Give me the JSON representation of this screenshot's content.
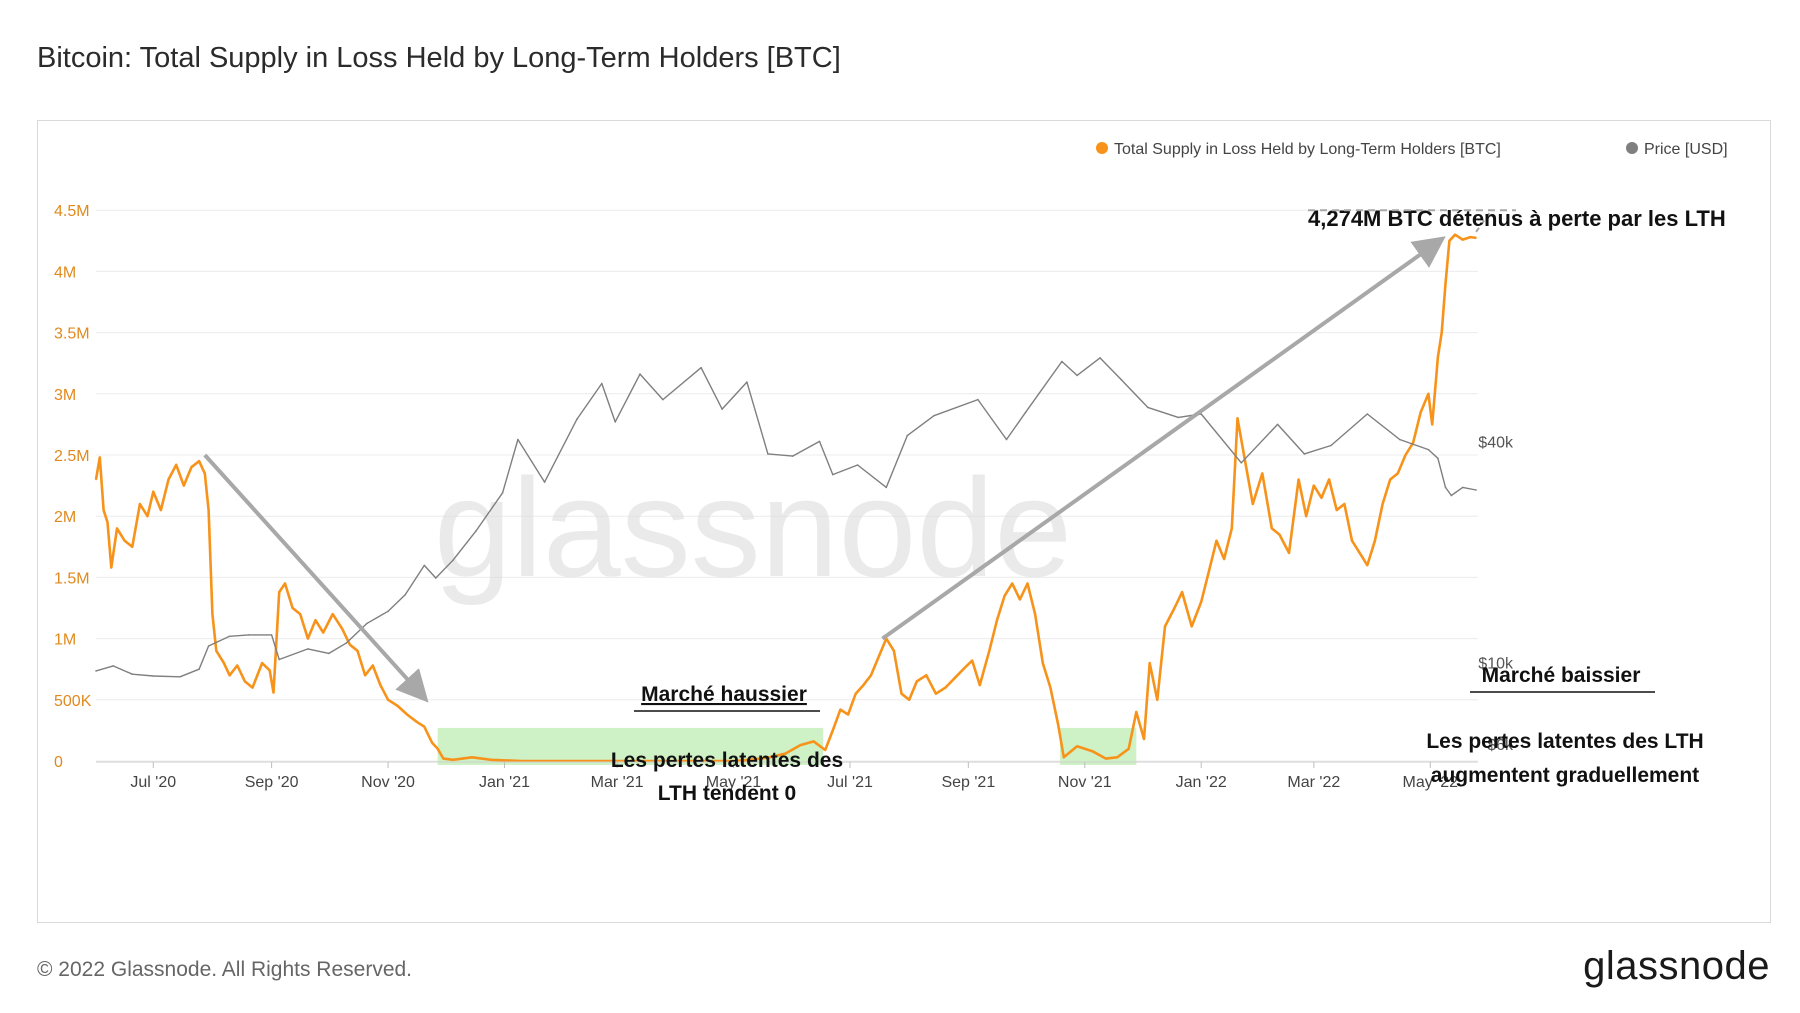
{
  "page": {
    "title": "Bitcoin: Total Supply in Loss Held by Long-Term Holders [BTC]",
    "copyright": "© 2022 Glassnode. All Rights Reserved.",
    "logo": "glassnode",
    "watermark": "glassnode"
  },
  "colors": {
    "supply": "#f7931a",
    "price": "#7f7f7f",
    "green_band": "#c9efc0",
    "arrow": "#a8a8a8",
    "left_axis_text": "#e08a1e",
    "right_axis_text": "#555555"
  },
  "annotations": {
    "top_label": "4,274M BTC détenus à perte par les LTH",
    "bull_title": "Marché haussier",
    "bull_line1": "Les pertes latentes des",
    "bull_line2": "LTH tendent 0",
    "bear_title": "Marché baissier",
    "bear_line1": "Les pertes latentes des LTH",
    "bear_line2": "augmentent graduellement"
  },
  "chart_data": {
    "type": "line",
    "title": "Bitcoin: Total Supply in Loss Held by Long-Term Holders [BTC]",
    "x_start": "2020-06-01",
    "x_end": "2022-05-26",
    "x_ticks": [
      {
        "label": "Jul '20",
        "date": "2020-07-01"
      },
      {
        "label": "Sep '20",
        "date": "2020-09-01"
      },
      {
        "label": "Nov '20",
        "date": "2020-11-01"
      },
      {
        "label": "Jan '21",
        "date": "2021-01-01"
      },
      {
        "label": "Mar '21",
        "date": "2021-03-01"
      },
      {
        "label": "May '21",
        "date": "2021-05-01"
      },
      {
        "label": "Jul '21",
        "date": "2021-07-01"
      },
      {
        "label": "Sep '21",
        "date": "2021-09-01"
      },
      {
        "label": "Nov '21",
        "date": "2021-11-01"
      },
      {
        "label": "Jan '22",
        "date": "2022-01-01"
      },
      {
        "label": "Mar '22",
        "date": "2022-03-01"
      },
      {
        "label": "May '22",
        "date": "2022-05-01"
      }
    ],
    "y_left": {
      "min": 0,
      "max": 5000000,
      "ticks": [
        {
          "value": 0,
          "label": "0"
        },
        {
          "value": 500000,
          "label": "500K"
        },
        {
          "value": 1000000,
          "label": "1M"
        },
        {
          "value": 1500000,
          "label": "1.5M"
        },
        {
          "value": 2000000,
          "label": "2M"
        },
        {
          "value": 2500000,
          "label": "2.5M"
        },
        {
          "value": 3000000,
          "label": "3M"
        },
        {
          "value": 3500000,
          "label": "3.5M"
        },
        {
          "value": 4000000,
          "label": "4M"
        },
        {
          "value": 4500000,
          "label": "4.5M"
        }
      ]
    },
    "y_right": {
      "scale": "log",
      "min": 5400,
      "max": 250000,
      "ticks": [
        {
          "value": 6000,
          "label": "$6k"
        },
        {
          "value": 10000,
          "label": "$10k"
        },
        {
          "value": 40000,
          "label": "$40k"
        }
      ]
    },
    "legend": {
      "position": "top-right"
    },
    "series": [
      {
        "name": "Total Supply in Loss Held by Long-Term Holders [BTC]",
        "axis": "left",
        "color": "#f7931a",
        "points": [
          [
            "2020-06-01",
            2300000
          ],
          [
            "2020-06-03",
            2480000
          ],
          [
            "2020-06-05",
            2050000
          ],
          [
            "2020-06-07",
            1950000
          ],
          [
            "2020-06-09",
            1580000
          ],
          [
            "2020-06-12",
            1900000
          ],
          [
            "2020-06-16",
            1800000
          ],
          [
            "2020-06-20",
            1750000
          ],
          [
            "2020-06-24",
            2100000
          ],
          [
            "2020-06-28",
            2000000
          ],
          [
            "2020-07-01",
            2200000
          ],
          [
            "2020-07-05",
            2050000
          ],
          [
            "2020-07-09",
            2300000
          ],
          [
            "2020-07-13",
            2420000
          ],
          [
            "2020-07-17",
            2250000
          ],
          [
            "2020-07-21",
            2400000
          ],
          [
            "2020-07-25",
            2450000
          ],
          [
            "2020-07-28",
            2350000
          ],
          [
            "2020-07-30",
            2050000
          ],
          [
            "2020-08-01",
            1200000
          ],
          [
            "2020-08-03",
            900000
          ],
          [
            "2020-08-07",
            800000
          ],
          [
            "2020-08-10",
            700000
          ],
          [
            "2020-08-14",
            780000
          ],
          [
            "2020-08-18",
            650000
          ],
          [
            "2020-08-22",
            600000
          ],
          [
            "2020-08-27",
            800000
          ],
          [
            "2020-08-31",
            740000
          ],
          [
            "2020-09-02",
            560000
          ],
          [
            "2020-09-05",
            1380000
          ],
          [
            "2020-09-08",
            1450000
          ],
          [
            "2020-09-12",
            1250000
          ],
          [
            "2020-09-16",
            1200000
          ],
          [
            "2020-09-20",
            1000000
          ],
          [
            "2020-09-24",
            1150000
          ],
          [
            "2020-09-28",
            1050000
          ],
          [
            "2020-10-03",
            1200000
          ],
          [
            "2020-10-08",
            1080000
          ],
          [
            "2020-10-12",
            950000
          ],
          [
            "2020-10-16",
            900000
          ],
          [
            "2020-10-20",
            700000
          ],
          [
            "2020-10-24",
            780000
          ],
          [
            "2020-10-28",
            620000
          ],
          [
            "2020-11-01",
            500000
          ],
          [
            "2020-11-06",
            450000
          ],
          [
            "2020-11-11",
            380000
          ],
          [
            "2020-11-16",
            320000
          ],
          [
            "2020-11-20",
            280000
          ],
          [
            "2020-11-24",
            150000
          ],
          [
            "2020-11-27",
            100000
          ],
          [
            "2020-11-30",
            20000
          ],
          [
            "2020-12-05",
            10000
          ],
          [
            "2020-12-15",
            30000
          ],
          [
            "2020-12-25",
            10000
          ],
          [
            "2021-01-10",
            0
          ],
          [
            "2021-02-10",
            0
          ],
          [
            "2021-03-10",
            0
          ],
          [
            "2021-04-10",
            0
          ],
          [
            "2021-05-01",
            0
          ],
          [
            "2021-05-10",
            10000
          ],
          [
            "2021-05-20",
            30000
          ],
          [
            "2021-05-28",
            60000
          ],
          [
            "2021-06-05",
            130000
          ],
          [
            "2021-06-12",
            160000
          ],
          [
            "2021-06-18",
            90000
          ],
          [
            "2021-06-22",
            250000
          ],
          [
            "2021-06-26",
            420000
          ],
          [
            "2021-06-30",
            380000
          ],
          [
            "2021-07-04",
            550000
          ],
          [
            "2021-07-08",
            620000
          ],
          [
            "2021-07-12",
            700000
          ],
          [
            "2021-07-16",
            850000
          ],
          [
            "2021-07-20",
            1000000
          ],
          [
            "2021-07-24",
            900000
          ],
          [
            "2021-07-28",
            550000
          ],
          [
            "2021-08-01",
            500000
          ],
          [
            "2021-08-05",
            650000
          ],
          [
            "2021-08-10",
            700000
          ],
          [
            "2021-08-15",
            550000
          ],
          [
            "2021-08-20",
            600000
          ],
          [
            "2021-08-25",
            680000
          ],
          [
            "2021-08-30",
            760000
          ],
          [
            "2021-09-03",
            820000
          ],
          [
            "2021-09-07",
            620000
          ],
          [
            "2021-09-12",
            900000
          ],
          [
            "2021-09-16",
            1150000
          ],
          [
            "2021-09-20",
            1350000
          ],
          [
            "2021-09-24",
            1450000
          ],
          [
            "2021-09-28",
            1320000
          ],
          [
            "2021-10-02",
            1450000
          ],
          [
            "2021-10-06",
            1200000
          ],
          [
            "2021-10-10",
            800000
          ],
          [
            "2021-10-14",
            600000
          ],
          [
            "2021-10-18",
            300000
          ],
          [
            "2021-10-21",
            30000
          ],
          [
            "2021-10-28",
            120000
          ],
          [
            "2021-11-05",
            80000
          ],
          [
            "2021-11-12",
            20000
          ],
          [
            "2021-11-18",
            30000
          ],
          [
            "2021-11-24",
            100000
          ],
          [
            "2021-11-28",
            400000
          ],
          [
            "2021-12-02",
            180000
          ],
          [
            "2021-12-05",
            800000
          ],
          [
            "2021-12-09",
            500000
          ],
          [
            "2021-12-13",
            1100000
          ],
          [
            "2021-12-18",
            1250000
          ],
          [
            "2021-12-22",
            1380000
          ],
          [
            "2021-12-27",
            1100000
          ],
          [
            "2022-01-01",
            1300000
          ],
          [
            "2022-01-05",
            1550000
          ],
          [
            "2022-01-09",
            1800000
          ],
          [
            "2022-01-13",
            1650000
          ],
          [
            "2022-01-17",
            1900000
          ],
          [
            "2022-01-20",
            2800000
          ],
          [
            "2022-01-24",
            2450000
          ],
          [
            "2022-01-28",
            2100000
          ],
          [
            "2022-02-02",
            2350000
          ],
          [
            "2022-02-07",
            1900000
          ],
          [
            "2022-02-11",
            1850000
          ],
          [
            "2022-02-16",
            1700000
          ],
          [
            "2022-02-21",
            2300000
          ],
          [
            "2022-02-25",
            2000000
          ],
          [
            "2022-03-01",
            2250000
          ],
          [
            "2022-03-05",
            2150000
          ],
          [
            "2022-03-09",
            2300000
          ],
          [
            "2022-03-13",
            2050000
          ],
          [
            "2022-03-17",
            2100000
          ],
          [
            "2022-03-21",
            1800000
          ],
          [
            "2022-03-25",
            1700000
          ],
          [
            "2022-03-29",
            1600000
          ],
          [
            "2022-04-02",
            1800000
          ],
          [
            "2022-04-06",
            2100000
          ],
          [
            "2022-04-10",
            2300000
          ],
          [
            "2022-04-14",
            2350000
          ],
          [
            "2022-04-18",
            2500000
          ],
          [
            "2022-04-22",
            2600000
          ],
          [
            "2022-04-26",
            2850000
          ],
          [
            "2022-04-30",
            3000000
          ],
          [
            "2022-05-02",
            2750000
          ],
          [
            "2022-05-05",
            3300000
          ],
          [
            "2022-05-07",
            3500000
          ],
          [
            "2022-05-09",
            3900000
          ],
          [
            "2022-05-11",
            4250000
          ],
          [
            "2022-05-14",
            4300000
          ],
          [
            "2022-05-18",
            4260000
          ],
          [
            "2022-05-22",
            4280000
          ],
          [
            "2022-05-25",
            4274000
          ]
        ]
      },
      {
        "name": "Price [USD]",
        "axis": "right",
        "color": "#7f7f7f",
        "points": [
          [
            "2020-06-01",
            9500
          ],
          [
            "2020-06-10",
            9800
          ],
          [
            "2020-06-20",
            9300
          ],
          [
            "2020-07-01",
            9200
          ],
          [
            "2020-07-15",
            9150
          ],
          [
            "2020-07-25",
            9600
          ],
          [
            "2020-07-30",
            11100
          ],
          [
            "2020-08-10",
            11800
          ],
          [
            "2020-08-20",
            11900
          ],
          [
            "2020-09-01",
            11900
          ],
          [
            "2020-09-05",
            10200
          ],
          [
            "2020-09-20",
            10900
          ],
          [
            "2020-10-01",
            10600
          ],
          [
            "2020-10-10",
            11300
          ],
          [
            "2020-10-21",
            12800
          ],
          [
            "2020-11-01",
            13800
          ],
          [
            "2020-11-10",
            15300
          ],
          [
            "2020-11-20",
            18400
          ],
          [
            "2020-11-26",
            17000
          ],
          [
            "2020-12-05",
            19000
          ],
          [
            "2020-12-17",
            22800
          ],
          [
            "2020-12-31",
            29000
          ],
          [
            "2021-01-08",
            40500
          ],
          [
            "2021-01-22",
            31000
          ],
          [
            "2021-02-08",
            46000
          ],
          [
            "2021-02-21",
            57500
          ],
          [
            "2021-02-28",
            45200
          ],
          [
            "2021-03-13",
            61000
          ],
          [
            "2021-03-25",
            52000
          ],
          [
            "2021-04-14",
            63500
          ],
          [
            "2021-04-25",
            49000
          ],
          [
            "2021-05-08",
            58000
          ],
          [
            "2021-05-19",
            37000
          ],
          [
            "2021-06-01",
            36500
          ],
          [
            "2021-06-15",
            40000
          ],
          [
            "2021-06-22",
            32500
          ],
          [
            "2021-07-05",
            34500
          ],
          [
            "2021-07-20",
            30000
          ],
          [
            "2021-07-31",
            41500
          ],
          [
            "2021-08-14",
            47000
          ],
          [
            "2021-09-06",
            52000
          ],
          [
            "2021-09-21",
            40500
          ],
          [
            "2021-10-01",
            48000
          ],
          [
            "2021-10-20",
            66000
          ],
          [
            "2021-10-28",
            60500
          ],
          [
            "2021-11-09",
            67500
          ],
          [
            "2021-11-20",
            59000
          ],
          [
            "2021-12-04",
            49500
          ],
          [
            "2021-12-20",
            46500
          ],
          [
            "2022-01-01",
            47500
          ],
          [
            "2022-01-22",
            35000
          ],
          [
            "2022-02-10",
            44500
          ],
          [
            "2022-02-24",
            37000
          ],
          [
            "2022-03-10",
            39000
          ],
          [
            "2022-03-29",
            47500
          ],
          [
            "2022-04-15",
            40500
          ],
          [
            "2022-04-30",
            38000
          ],
          [
            "2022-05-05",
            36000
          ],
          [
            "2022-05-09",
            30000
          ],
          [
            "2022-05-12",
            28500
          ],
          [
            "2022-05-18",
            30000
          ],
          [
            "2022-05-25",
            29500
          ]
        ]
      }
    ],
    "shaded_regions": [
      {
        "start": "2020-11-27",
        "end": "2021-06-17",
        "label": ""
      },
      {
        "start": "2021-10-19",
        "end": "2021-11-28",
        "label": ""
      }
    ],
    "arrows": [
      {
        "from": [
          "2020-07-28",
          2500000
        ],
        "to": [
          "2020-11-18",
          550000
        ]
      },
      {
        "from": [
          "2021-07-18",
          1000000
        ],
        "to": [
          "2022-05-04",
          4230000
        ]
      }
    ],
    "reference_line": {
      "value": 4500000,
      "from": "2021-11-15",
      "to": "2022-05-26",
      "label": "4,274M BTC détenus à perte par les LTH"
    }
  }
}
